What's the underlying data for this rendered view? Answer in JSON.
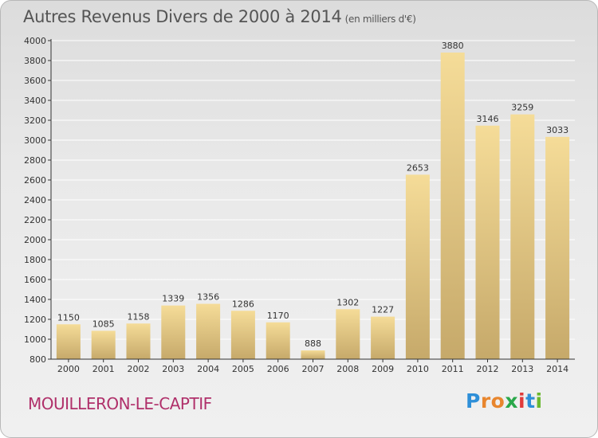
{
  "header": {
    "title": "Autres Revenus Divers de 2000 à 2014",
    "unit": "(en milliers d'€)"
  },
  "footer": {
    "location": "MOUILLERON-LE-CAPTIF",
    "brand": "Proxiti",
    "brand_colors": [
      "#2e8fd8",
      "#e8862e",
      "#e8862e",
      "#2aa84a",
      "#e03b3b",
      "#2e8fd8",
      "#6ab82e"
    ]
  },
  "colors": {
    "bar_top": "#f5dc98",
    "bar_bottom": "#c6a96a",
    "axis": "#333333",
    "grid": "#ffffff",
    "title": "#555555",
    "location": "#b0306a"
  },
  "chart_data": {
    "type": "bar",
    "title": "Autres Revenus Divers de 2000 à 2014",
    "subtitle": "(en milliers d'€)",
    "xlabel": "",
    "ylabel": "",
    "categories": [
      "2000",
      "2001",
      "2002",
      "2003",
      "2004",
      "2005",
      "2006",
      "2007",
      "2008",
      "2009",
      "2010",
      "2011",
      "2012",
      "2013",
      "2014"
    ],
    "values": [
      1150,
      1085,
      1158,
      1339,
      1356,
      1286,
      1170,
      888,
      1302,
      1227,
      2653,
      3880,
      3146,
      3259,
      3033
    ],
    "ylim": [
      800,
      4000
    ],
    "yticks": [
      800,
      1000,
      1200,
      1400,
      1600,
      1800,
      2000,
      2200,
      2400,
      2600,
      2800,
      3000,
      3200,
      3400,
      3600,
      3800,
      4000
    ],
    "grid": true,
    "legend": "none"
  }
}
